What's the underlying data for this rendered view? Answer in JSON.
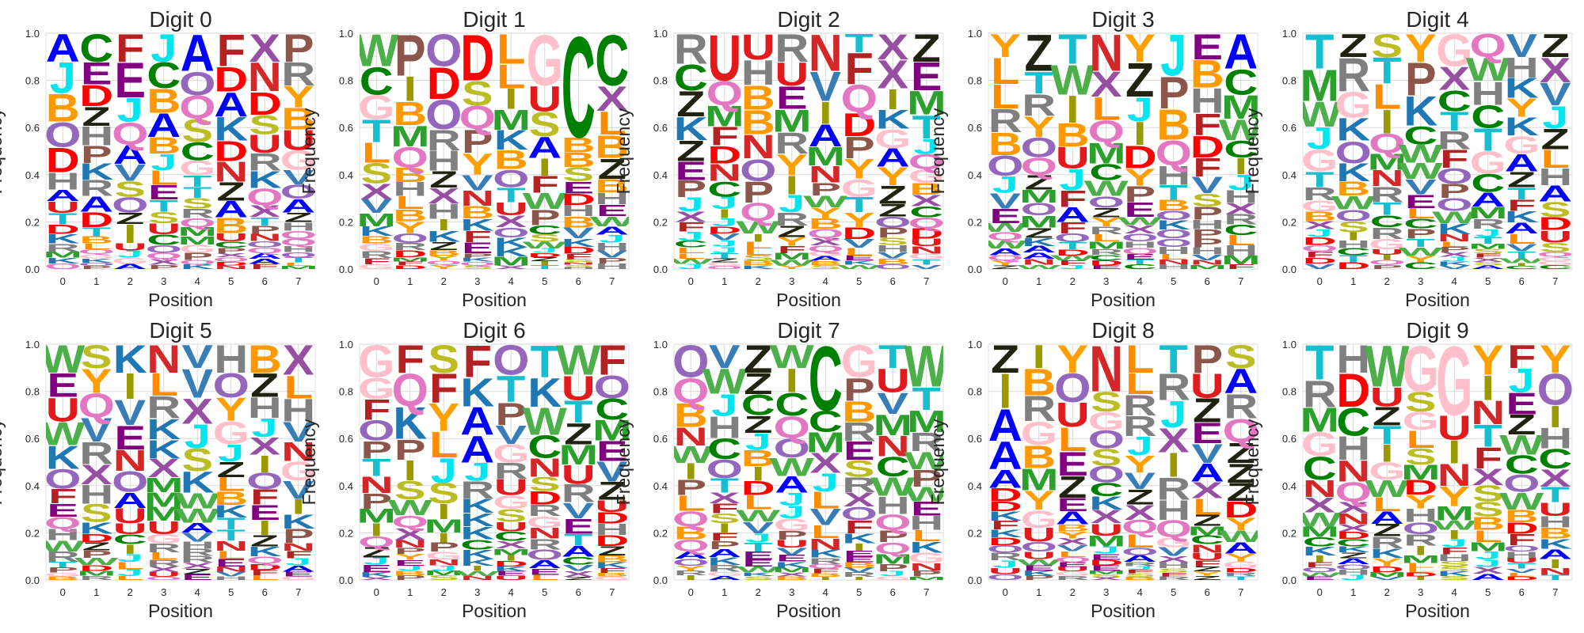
{
  "chart_data": {
    "type": "sequence-logo",
    "xlabel": "Position",
    "ylabel": "Frequency",
    "ylim": [
      0,
      1
    ],
    "yticks": [
      "0.0",
      "0.2",
      "0.4",
      "0.6",
      "0.8",
      "1.0"
    ],
    "positions": [
      "0",
      "1",
      "2",
      "3",
      "4",
      "5",
      "6",
      "7"
    ],
    "letter_colors": {
      "A": "#0000ff",
      "B": "#ff9900",
      "C": "#008000",
      "D": "#ff0000",
      "E": "#800080",
      "F": "#b22222",
      "G": "#ffc0cb",
      "H": "#808080",
      "I": "#9a9a00",
      "J": "#00e5ee",
      "K": "#1f77b4",
      "L": "#ff8c00",
      "M": "#2ca02c",
      "N": "#d62728",
      "O": "#9467bd",
      "P": "#8c564b",
      "Q": "#e377c2",
      "R": "#7f7f7f",
      "S": "#bcbd22",
      "T": "#17becf",
      "U": "#e31a1c",
      "V": "#377eb8",
      "W": "#4daf4a",
      "X": "#984ea3",
      "Y": "#ff9f00",
      "Z": "#222211"
    },
    "panels": [
      {
        "title": "Digit 0",
        "top": [
          "A",
          "C",
          "F",
          "J",
          "A",
          "F",
          "X",
          "P"
        ],
        "heights": [
          [
            0.12,
            "A"
          ],
          [
            0.12,
            "C"
          ],
          [
            0.12,
            "F"
          ],
          [
            0.12,
            "J"
          ],
          [
            0.16,
            "A"
          ],
          [
            0.14,
            "F"
          ],
          [
            0.12,
            "X"
          ],
          [
            0.12,
            "P"
          ]
        ],
        "seed": 11
      },
      {
        "title": "Digit 1",
        "top": [
          "W",
          "P",
          "O",
          "D",
          "L",
          "G",
          "C",
          "C"
        ],
        "heights": [
          [
            0.14,
            "W"
          ],
          [
            0.18,
            "P"
          ],
          [
            0.14,
            "O"
          ],
          [
            0.2,
            "D"
          ],
          [
            0.13,
            "L"
          ],
          [
            0.22,
            "G"
          ],
          [
            0.44,
            "C"
          ],
          [
            0.22,
            "C"
          ]
        ],
        "seed": 23
      },
      {
        "title": "Digit 2",
        "top": [
          "R",
          "U",
          "U",
          "R",
          "N",
          "T",
          "X",
          "Z"
        ],
        "heights": [
          [
            0.13,
            "R"
          ],
          [
            0.2,
            "U"
          ],
          [
            0.11,
            "U"
          ],
          [
            0.12,
            "R"
          ],
          [
            0.16,
            "N"
          ],
          [
            0.08,
            "T"
          ],
          [
            0.11,
            "X"
          ],
          [
            0.12,
            "Z"
          ]
        ],
        "seed": 37
      },
      {
        "title": "Digit 3",
        "top": [
          "Y",
          "Z",
          "T",
          "N",
          "Y",
          "J",
          "E",
          "A"
        ],
        "heights": [
          [
            0.1,
            "Y"
          ],
          [
            0.16,
            "Z"
          ],
          [
            0.13,
            "T"
          ],
          [
            0.16,
            "N"
          ],
          [
            0.12,
            "Y"
          ],
          [
            0.18,
            "J"
          ],
          [
            0.11,
            "E"
          ],
          [
            0.15,
            "A"
          ]
        ],
        "seed": 41
      },
      {
        "title": "Digit 4",
        "top": [
          "T",
          "Z",
          "S",
          "Y",
          "G",
          "Q",
          "V",
          "Z"
        ],
        "heights": [
          [
            0.15,
            "T"
          ],
          [
            0.1,
            "Z"
          ],
          [
            0.1,
            "S"
          ],
          [
            0.12,
            "Y"
          ],
          [
            0.14,
            "G"
          ],
          [
            0.1,
            "Q"
          ],
          [
            0.1,
            "V"
          ],
          [
            0.1,
            "Z"
          ]
        ],
        "seed": 53
      },
      {
        "title": "Digit 5",
        "top": [
          "W",
          "S",
          "K",
          "N",
          "V",
          "H",
          "B",
          "X"
        ],
        "heights": [
          [
            0.12,
            "W"
          ],
          [
            0.1,
            "S"
          ],
          [
            0.12,
            "K"
          ],
          [
            0.12,
            "N"
          ],
          [
            0.1,
            "V"
          ],
          [
            0.12,
            "H"
          ],
          [
            0.12,
            "B"
          ],
          [
            0.13,
            "X"
          ]
        ],
        "seed": 61
      },
      {
        "title": "Digit 6",
        "top": [
          "G",
          "F",
          "S",
          "F",
          "O",
          "T",
          "W",
          "F"
        ],
        "heights": [
          [
            0.14,
            "G"
          ],
          [
            0.12,
            "F"
          ],
          [
            0.12,
            "S"
          ],
          [
            0.14,
            "F"
          ],
          [
            0.13,
            "O"
          ],
          [
            0.14,
            "T"
          ],
          [
            0.13,
            "W"
          ],
          [
            0.13,
            "F"
          ]
        ],
        "seed": 73
      },
      {
        "title": "Digit 7",
        "top": [
          "O",
          "V",
          "Z",
          "W",
          "C",
          "G",
          "T",
          "W"
        ],
        "heights": [
          [
            0.14,
            "O"
          ],
          [
            0.1,
            "V"
          ],
          [
            0.12,
            "Z"
          ],
          [
            0.1,
            "W"
          ],
          [
            0.28,
            "C"
          ],
          [
            0.14,
            "G"
          ],
          [
            0.1,
            "T"
          ],
          [
            0.18,
            "W"
          ]
        ],
        "seed": 89
      },
      {
        "title": "Digit 8",
        "top": [
          "Z",
          "I",
          "Y",
          "N",
          "L",
          "T",
          "P",
          "S"
        ],
        "heights": [
          [
            0.12,
            "Z"
          ],
          [
            0.1,
            "I"
          ],
          [
            0.12,
            "Y"
          ],
          [
            0.2,
            "N"
          ],
          [
            0.12,
            "L"
          ],
          [
            0.12,
            "T"
          ],
          [
            0.12,
            "P"
          ],
          [
            0.1,
            "S"
          ]
        ],
        "seed": 97
      },
      {
        "title": "Digit 9",
        "top": [
          "T",
          "H",
          "W",
          "G",
          "G",
          "Y",
          "F",
          "Y"
        ],
        "heights": [
          [
            0.15,
            "T"
          ],
          [
            0.12,
            "H"
          ],
          [
            0.18,
            "W"
          ],
          [
            0.2,
            "G"
          ],
          [
            0.3,
            "G"
          ],
          [
            0.13,
            "Y"
          ],
          [
            0.1,
            "F"
          ],
          [
            0.12,
            "Y"
          ]
        ],
        "seed": 101
      }
    ]
  }
}
